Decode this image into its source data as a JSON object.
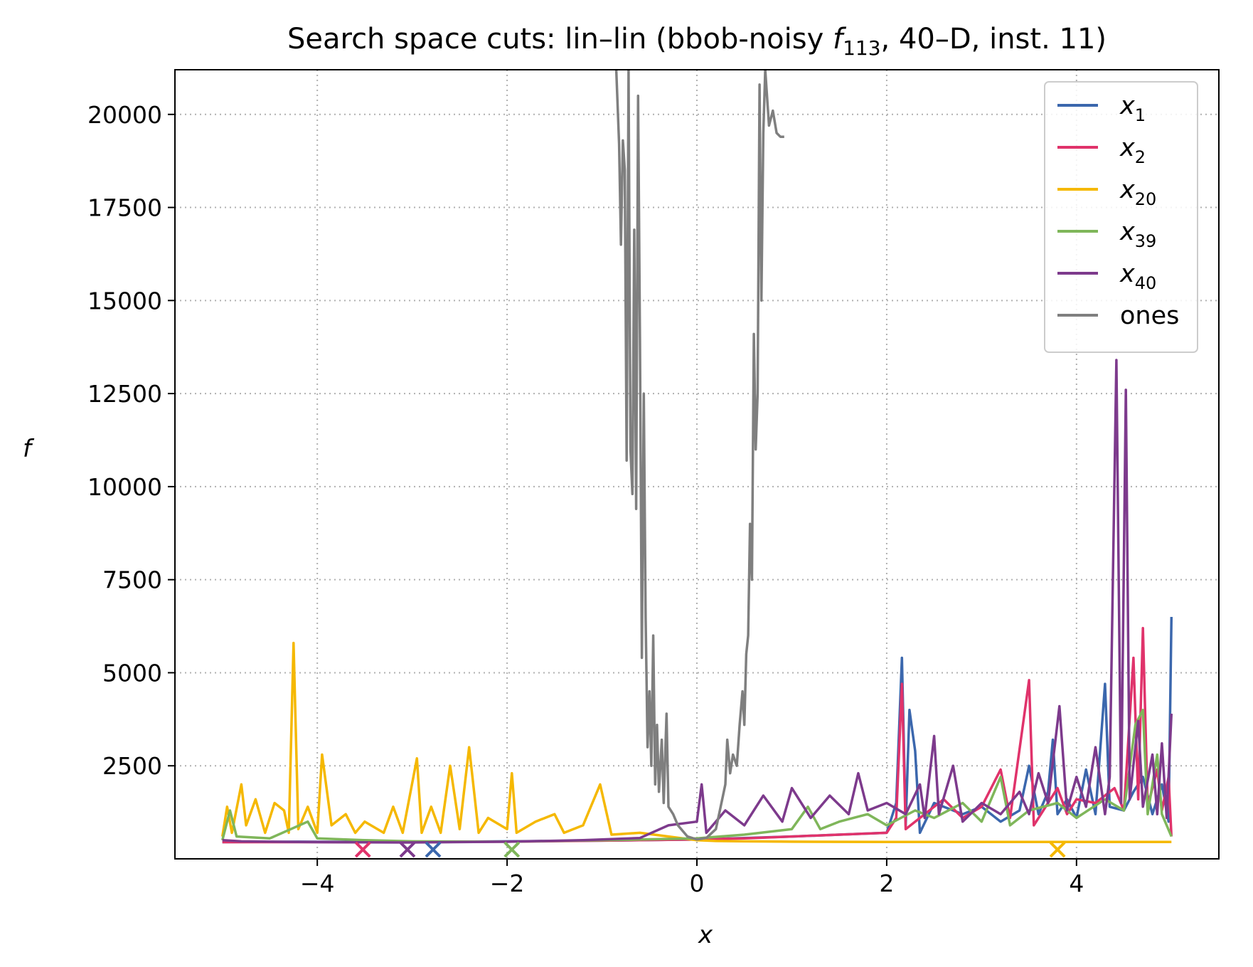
{
  "chart_data": {
    "type": "line",
    "title_parts": [
      "Search space cuts: lin–lin (bbob-noisy ",
      "f",
      "113",
      ", 40–D, inst. 11)"
    ],
    "xlabel": "x",
    "ylabel": "f",
    "xlim": [
      -5.5,
      5.5
    ],
    "ylim": [
      0,
      21200
    ],
    "xticks": [
      -4,
      -2,
      0,
      2,
      4
    ],
    "xtick_labels": [
      "−4",
      "−2",
      "0",
      "2",
      "4"
    ],
    "yticks": [
      2500,
      5000,
      7500,
      10000,
      12500,
      15000,
      17500,
      20000
    ],
    "ytick_labels": [
      "2500",
      "5000",
      "7500",
      "10000",
      "12500",
      "15000",
      "17500",
      "20000"
    ],
    "grid": true,
    "legend_position": "top-right",
    "series": [
      {
        "name": "x",
        "subscript": "1",
        "color": "#3b67ad",
        "points": [
          [
            -5,
            450
          ],
          [
            -4.2,
            460
          ],
          [
            -3,
            450
          ],
          [
            -2,
            470
          ],
          [
            -1,
            490
          ],
          [
            0,
            520
          ],
          [
            0.5,
            560
          ],
          [
            1,
            600
          ],
          [
            1.5,
            650
          ],
          [
            2,
            700
          ],
          [
            2.1,
            1500
          ],
          [
            2.16,
            5400
          ],
          [
            2.2,
            900
          ],
          [
            2.24,
            4000
          ],
          [
            2.3,
            2900
          ],
          [
            2.35,
            700
          ],
          [
            2.5,
            1500
          ],
          [
            2.8,
            1200
          ],
          [
            3,
            1400
          ],
          [
            3.2,
            1000
          ],
          [
            3.4,
            1300
          ],
          [
            3.5,
            2500
          ],
          [
            3.6,
            1200
          ],
          [
            3.7,
            1800
          ],
          [
            3.75,
            3200
          ],
          [
            3.8,
            1200
          ],
          [
            3.9,
            1600
          ],
          [
            4,
            1100
          ],
          [
            4.1,
            2400
          ],
          [
            4.2,
            1200
          ],
          [
            4.3,
            4700
          ],
          [
            4.35,
            1400
          ],
          [
            4.5,
            1300
          ],
          [
            4.6,
            1800
          ],
          [
            4.7,
            2200
          ],
          [
            4.8,
            1200
          ],
          [
            4.9,
            2000
          ],
          [
            4.97,
            1000
          ],
          [
            5,
            6500
          ]
        ],
        "min_marker_x": -2.78
      },
      {
        "name": "x",
        "subscript": "2",
        "color": "#e0336b",
        "points": [
          [
            -5,
            450
          ],
          [
            -4,
            450
          ],
          [
            -3.55,
            445
          ],
          [
            -3,
            450
          ],
          [
            -2,
            460
          ],
          [
            -1,
            490
          ],
          [
            0,
            520
          ],
          [
            0.5,
            550
          ],
          [
            1,
            600
          ],
          [
            1.5,
            650
          ],
          [
            2,
            700
          ],
          [
            2.1,
            1100
          ],
          [
            2.16,
            4700
          ],
          [
            2.2,
            800
          ],
          [
            2.4,
            1200
          ],
          [
            2.6,
            1600
          ],
          [
            2.8,
            1100
          ],
          [
            3,
            1400
          ],
          [
            3.2,
            2400
          ],
          [
            3.3,
            1100
          ],
          [
            3.5,
            4800
          ],
          [
            3.55,
            900
          ],
          [
            3.7,
            1500
          ],
          [
            3.8,
            1900
          ],
          [
            3.9,
            1200
          ],
          [
            4,
            1600
          ],
          [
            4.2,
            1500
          ],
          [
            4.4,
            1900
          ],
          [
            4.5,
            1300
          ],
          [
            4.6,
            5400
          ],
          [
            4.65,
            1600
          ],
          [
            4.7,
            6200
          ],
          [
            4.75,
            1400
          ],
          [
            4.85,
            2400
          ],
          [
            4.9,
            1300
          ],
          [
            4.97,
            2200
          ],
          [
            5,
            600
          ]
        ],
        "min_marker_x": -3.52
      },
      {
        "name": "x",
        "subscript": "20",
        "color": "#f5b800",
        "points": [
          [
            -5,
            600
          ],
          [
            -4.95,
            1400
          ],
          [
            -4.9,
            700
          ],
          [
            -4.8,
            2000
          ],
          [
            -4.75,
            900
          ],
          [
            -4.65,
            1600
          ],
          [
            -4.55,
            700
          ],
          [
            -4.45,
            1500
          ],
          [
            -4.35,
            1300
          ],
          [
            -4.3,
            700
          ],
          [
            -4.25,
            5800
          ],
          [
            -4.2,
            800
          ],
          [
            -4.1,
            1400
          ],
          [
            -4,
            700
          ],
          [
            -3.95,
            2800
          ],
          [
            -3.85,
            900
          ],
          [
            -3.7,
            1200
          ],
          [
            -3.6,
            700
          ],
          [
            -3.5,
            1000
          ],
          [
            -3.3,
            700
          ],
          [
            -3.2,
            1400
          ],
          [
            -3.1,
            700
          ],
          [
            -2.95,
            2700
          ],
          [
            -2.9,
            700
          ],
          [
            -2.8,
            1400
          ],
          [
            -2.7,
            700
          ],
          [
            -2.6,
            2500
          ],
          [
            -2.5,
            800
          ],
          [
            -2.4,
            3000
          ],
          [
            -2.3,
            700
          ],
          [
            -2.2,
            1100
          ],
          [
            -2,
            800
          ],
          [
            -1.95,
            2300
          ],
          [
            -1.9,
            700
          ],
          [
            -1.7,
            1000
          ],
          [
            -1.5,
            1200
          ],
          [
            -1.4,
            700
          ],
          [
            -1.2,
            900
          ],
          [
            -1.02,
            2000
          ],
          [
            -0.9,
            650
          ],
          [
            -0.6,
            700
          ],
          [
            -0.3,
            600
          ],
          [
            0,
            500
          ],
          [
            0.2,
            480
          ],
          [
            0.5,
            470
          ],
          [
            1,
            460
          ],
          [
            2,
            455
          ],
          [
            3,
            455
          ],
          [
            3.8,
            455
          ],
          [
            4,
            455
          ],
          [
            5,
            455
          ]
        ],
        "min_marker_x": 3.8
      },
      {
        "name": "x",
        "subscript": "39",
        "color": "#7fb65a",
        "points": [
          [
            -5,
            500
          ],
          [
            -4.92,
            1300
          ],
          [
            -4.85,
            600
          ],
          [
            -4.5,
            550
          ],
          [
            -4.1,
            1000
          ],
          [
            -4,
            550
          ],
          [
            -3.5,
            500
          ],
          [
            -3,
            470
          ],
          [
            -2,
            460
          ],
          [
            -1,
            500
          ],
          [
            0,
            550
          ],
          [
            0.5,
            650
          ],
          [
            1,
            800
          ],
          [
            1.17,
            1400
          ],
          [
            1.3,
            800
          ],
          [
            1.5,
            1000
          ],
          [
            1.8,
            1200
          ],
          [
            2,
            900
          ],
          [
            2.3,
            1300
          ],
          [
            2.5,
            1100
          ],
          [
            2.8,
            1500
          ],
          [
            3,
            1000
          ],
          [
            3.2,
            2200
          ],
          [
            3.3,
            900
          ],
          [
            3.5,
            1300
          ],
          [
            3.8,
            1500
          ],
          [
            4,
            1100
          ],
          [
            4.3,
            1600
          ],
          [
            4.5,
            1300
          ],
          [
            4.62,
            3600
          ],
          [
            4.7,
            4000
          ],
          [
            4.75,
            1200
          ],
          [
            4.85,
            2800
          ],
          [
            4.9,
            1200
          ],
          [
            5,
            600
          ]
        ],
        "min_marker_x": -1.95
      },
      {
        "name": "x",
        "subscript": "40",
        "color": "#7d3a8c",
        "points": [
          [
            -5,
            500
          ],
          [
            -4.8,
            470
          ],
          [
            -4,
            450
          ],
          [
            -3.05,
            440
          ],
          [
            -2,
            460
          ],
          [
            -1.2,
            500
          ],
          [
            -0.6,
            560
          ],
          [
            -0.3,
            900
          ],
          [
            0,
            1000
          ],
          [
            0.05,
            2000
          ],
          [
            0.1,
            700
          ],
          [
            0.3,
            1300
          ],
          [
            0.5,
            900
          ],
          [
            0.7,
            1700
          ],
          [
            0.9,
            1000
          ],
          [
            1,
            1900
          ],
          [
            1.2,
            1100
          ],
          [
            1.4,
            1700
          ],
          [
            1.6,
            1200
          ],
          [
            1.7,
            2300
          ],
          [
            1.8,
            1300
          ],
          [
            2,
            1500
          ],
          [
            2.2,
            1200
          ],
          [
            2.35,
            2000
          ],
          [
            2.4,
            1100
          ],
          [
            2.5,
            3300
          ],
          [
            2.55,
            1200
          ],
          [
            2.7,
            2500
          ],
          [
            2.8,
            1000
          ],
          [
            3,
            1500
          ],
          [
            3.2,
            1200
          ],
          [
            3.4,
            1800
          ],
          [
            3.5,
            1200
          ],
          [
            3.6,
            2300
          ],
          [
            3.7,
            1500
          ],
          [
            3.82,
            4100
          ],
          [
            3.9,
            1300
          ],
          [
            4,
            2200
          ],
          [
            4.1,
            1400
          ],
          [
            4.2,
            3000
          ],
          [
            4.3,
            1200
          ],
          [
            4.35,
            2200
          ],
          [
            4.42,
            13400
          ],
          [
            4.47,
            1500
          ],
          [
            4.52,
            12600
          ],
          [
            4.56,
            1600
          ],
          [
            4.65,
            3700
          ],
          [
            4.7,
            1400
          ],
          [
            4.8,
            2800
          ],
          [
            4.85,
            1200
          ],
          [
            4.9,
            3100
          ],
          [
            4.95,
            1100
          ],
          [
            5,
            3900
          ]
        ],
        "min_marker_x": -3.05
      },
      {
        "name": "ones",
        "color": "#7f7f7f",
        "points": [
          [
            -0.85,
            21200
          ],
          [
            -0.82,
            19200
          ],
          [
            -0.8,
            16500
          ],
          [
            -0.78,
            19300
          ],
          [
            -0.76,
            18500
          ],
          [
            -0.74,
            10700
          ],
          [
            -0.72,
            21200
          ],
          [
            -0.7,
            11000
          ],
          [
            -0.68,
            9800
          ],
          [
            -0.66,
            16900
          ],
          [
            -0.64,
            9400
          ],
          [
            -0.62,
            20500
          ],
          [
            -0.6,
            14000
          ],
          [
            -0.58,
            5400
          ],
          [
            -0.56,
            12500
          ],
          [
            -0.54,
            6500
          ],
          [
            -0.52,
            3000
          ],
          [
            -0.5,
            4500
          ],
          [
            -0.48,
            2500
          ],
          [
            -0.46,
            6000
          ],
          [
            -0.44,
            2000
          ],
          [
            -0.42,
            3600
          ],
          [
            -0.4,
            1800
          ],
          [
            -0.37,
            3200
          ],
          [
            -0.35,
            1500
          ],
          [
            -0.32,
            3900
          ],
          [
            -0.3,
            1400
          ],
          [
            -0.25,
            1200
          ],
          [
            -0.2,
            900
          ],
          [
            -0.1,
            600
          ],
          [
            0,
            520
          ],
          [
            0.1,
            560
          ],
          [
            0.2,
            800
          ],
          [
            0.25,
            1400
          ],
          [
            0.3,
            2000
          ],
          [
            0.32,
            3200
          ],
          [
            0.35,
            2300
          ],
          [
            0.38,
            2800
          ],
          [
            0.42,
            2500
          ],
          [
            0.45,
            3600
          ],
          [
            0.48,
            4500
          ],
          [
            0.5,
            3600
          ],
          [
            0.52,
            5500
          ],
          [
            0.54,
            6000
          ],
          [
            0.56,
            9000
          ],
          [
            0.58,
            7500
          ],
          [
            0.6,
            14100
          ],
          [
            0.62,
            11000
          ],
          [
            0.64,
            12500
          ],
          [
            0.66,
            20800
          ],
          [
            0.68,
            15000
          ],
          [
            0.7,
            19500
          ],
          [
            0.72,
            21200
          ],
          [
            0.76,
            19700
          ],
          [
            0.8,
            20100
          ],
          [
            0.84,
            19500
          ],
          [
            0.88,
            19400
          ],
          [
            0.92,
            19400
          ]
        ]
      }
    ]
  }
}
